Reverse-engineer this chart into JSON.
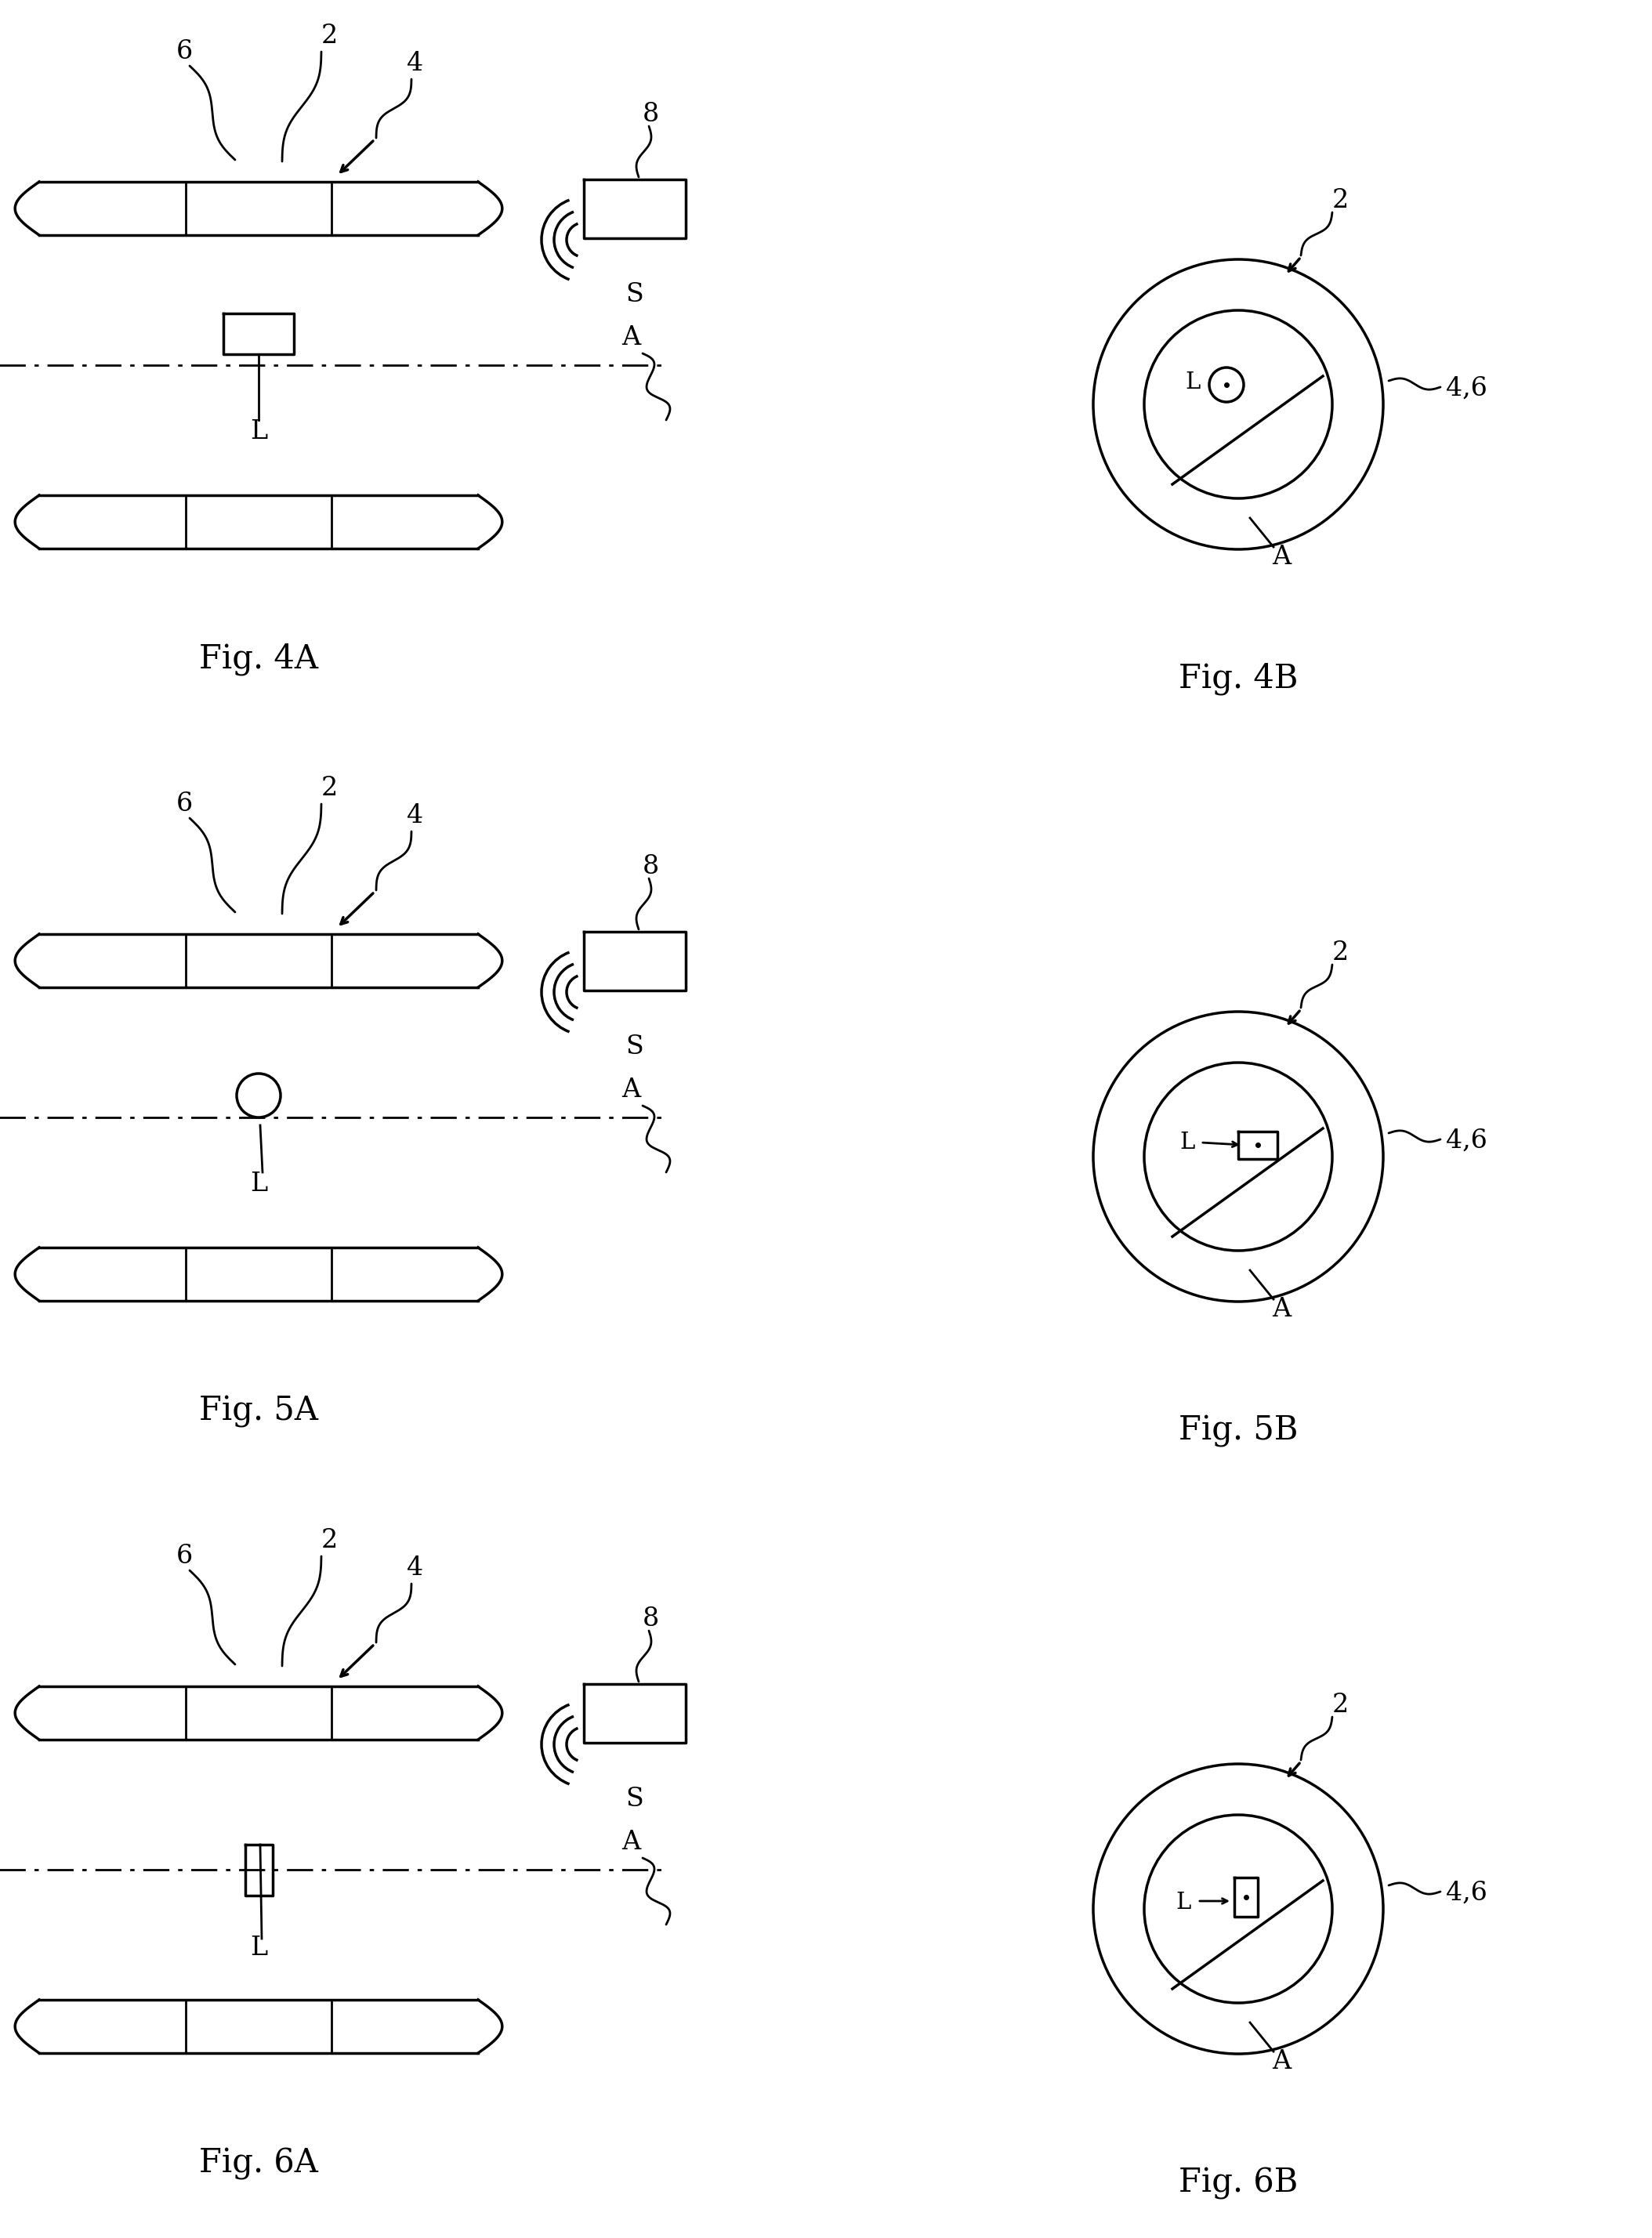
{
  "bg_color": "#ffffff",
  "line_color": "#000000",
  "fig_labels": [
    "Fig. 4A",
    "Fig. 4B",
    "Fig. 5A",
    "Fig. 5B",
    "Fig. 6A",
    "Fig. 6B"
  ],
  "font_size_label": 30,
  "font_size_annot": 24,
  "lw": 2.5
}
